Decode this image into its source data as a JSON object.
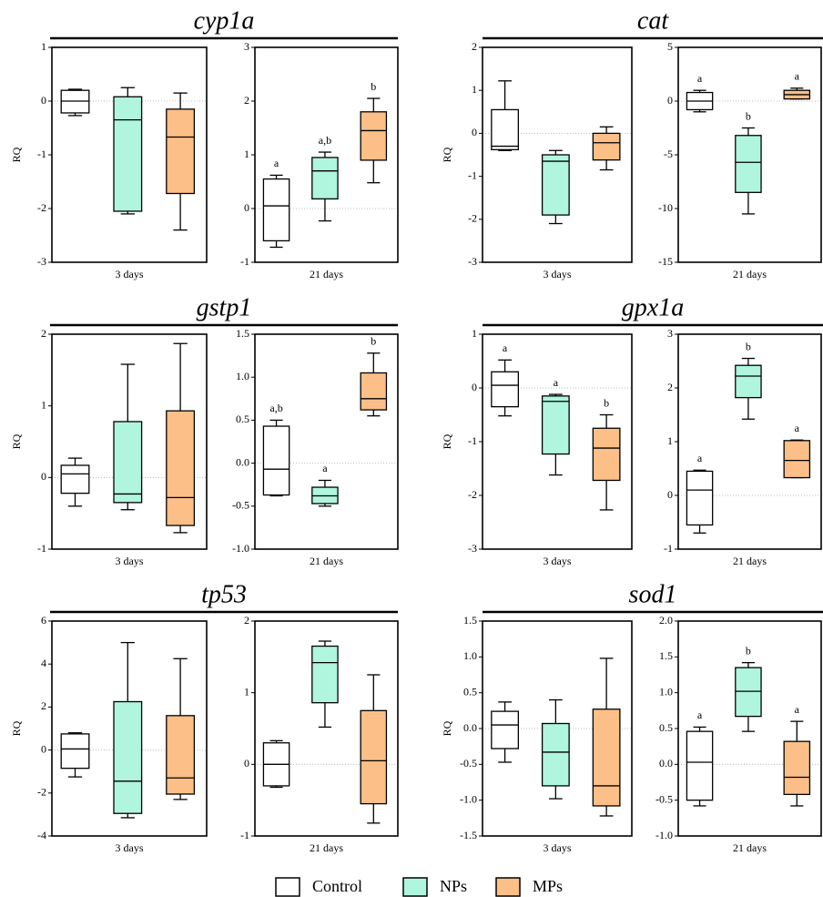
{
  "groups": [
    {
      "name": "Control",
      "color": "#ffffff"
    },
    {
      "name": "NPs",
      "color": "#b0f5dd"
    },
    {
      "name": "MPs",
      "color": "#fbbf87"
    }
  ],
  "chart_data": [
    {
      "type": "box",
      "title": "cyp1a",
      "ylabel": "RQ",
      "panels": [
        {
          "xlabel": "3 days",
          "ylim": [
            -3,
            1
          ],
          "yticks": [
            -3,
            -2,
            -1,
            0,
            1
          ],
          "boxes": [
            {
              "min": -0.27,
              "q1": -0.22,
              "median": 0.0,
              "q3": 0.2,
              "max": 0.22
            },
            {
              "min": -2.1,
              "q1": -2.05,
              "median": -0.35,
              "q3": 0.08,
              "max": 0.25
            },
            {
              "min": -2.4,
              "q1": -1.72,
              "median": -0.67,
              "q3": -0.15,
              "max": 0.15
            }
          ]
        },
        {
          "xlabel": "21 days",
          "ylim": [
            -1,
            3
          ],
          "yticks": [
            -1,
            0,
            1,
            2,
            3
          ],
          "letters": [
            "a",
            "a,b",
            "b"
          ],
          "boxes": [
            {
              "min": -0.72,
              "q1": -0.6,
              "median": 0.05,
              "q3": 0.55,
              "max": 0.62
            },
            {
              "min": -0.23,
              "q1": 0.18,
              "median": 0.7,
              "q3": 0.95,
              "max": 1.05
            },
            {
              "min": 0.48,
              "q1": 0.9,
              "median": 1.45,
              "q3": 1.8,
              "max": 2.05
            }
          ]
        }
      ]
    },
    {
      "type": "box",
      "title": "cat",
      "ylabel": "RQ",
      "panels": [
        {
          "xlabel": "3 days",
          "ylim": [
            -3,
            2
          ],
          "yticks": [
            -3,
            -2,
            -1,
            0,
            1,
            2
          ],
          "boxes": [
            {
              "min": -0.4,
              "q1": -0.38,
              "median": -0.3,
              "q3": 0.55,
              "max": 1.22
            },
            {
              "min": -2.1,
              "q1": -1.9,
              "median": -0.65,
              "q3": -0.5,
              "max": -0.4
            },
            {
              "min": -0.85,
              "q1": -0.62,
              "median": -0.22,
              "q3": 0.0,
              "max": 0.15
            }
          ]
        },
        {
          "xlabel": "21 days",
          "ylim": [
            -15,
            5
          ],
          "yticks": [
            -15,
            -10,
            -5,
            0,
            5
          ],
          "letters": [
            "a",
            "b",
            "a"
          ],
          "boxes": [
            {
              "min": -1,
              "q1": -0.8,
              "median": 0,
              "q3": 0.8,
              "max": 1
            },
            {
              "min": -10.5,
              "q1": -8.5,
              "median": -5.7,
              "q3": -3.2,
              "max": -2.5
            },
            {
              "min": 0.2,
              "q1": 0.2,
              "median": 0.6,
              "q3": 1.0,
              "max": 1.2
            }
          ]
        }
      ]
    },
    {
      "type": "box",
      "title": "gstp1",
      "ylabel": "RQ",
      "panels": [
        {
          "xlabel": "3 days",
          "ylim": [
            -1,
            2
          ],
          "yticks": [
            -1,
            0,
            1,
            2
          ],
          "boxes": [
            {
              "min": -0.4,
              "q1": -0.22,
              "median": 0.05,
              "q3": 0.17,
              "max": 0.27
            },
            {
              "min": -0.45,
              "q1": -0.35,
              "median": -0.23,
              "q3": 0.78,
              "max": 1.58
            },
            {
              "min": -0.77,
              "q1": -0.67,
              "median": -0.28,
              "q3": 0.93,
              "max": 1.87
            }
          ]
        },
        {
          "xlabel": "21 days",
          "ylim": [
            -1,
            1.5
          ],
          "yticks": [
            {
              "value": -1,
              "label": "-1.0"
            },
            -0.5,
            {
              "value": 0,
              "label": "0.0"
            },
            0.5,
            {
              "value": 1,
              "label": "1.0"
            },
            1.5
          ],
          "letters": [
            "a,b",
            "a",
            "b"
          ],
          "boxes": [
            {
              "min": -0.38,
              "q1": -0.37,
              "median": -0.07,
              "q3": 0.43,
              "max": 0.5
            },
            {
              "min": -0.5,
              "q1": -0.47,
              "median": -0.38,
              "q3": -0.28,
              "max": -0.2
            },
            {
              "min": 0.55,
              "q1": 0.62,
              "median": 0.75,
              "q3": 1.05,
              "max": 1.28
            }
          ]
        }
      ]
    },
    {
      "type": "box",
      "title": "gpx1a",
      "ylabel": "RQ",
      "panels": [
        {
          "xlabel": "3 days",
          "ylim": [
            -3,
            1
          ],
          "yticks": [
            -3,
            -2,
            -1,
            0,
            1
          ],
          "letters": [
            "a",
            "a",
            "b"
          ],
          "boxes": [
            {
              "min": -0.52,
              "q1": -0.35,
              "median": 0.05,
              "q3": 0.3,
              "max": 0.52
            },
            {
              "min": -1.62,
              "q1": -1.23,
              "median": -0.25,
              "q3": -0.15,
              "max": -0.12
            },
            {
              "min": -2.27,
              "q1": -1.72,
              "median": -1.12,
              "q3": -0.75,
              "max": -0.5
            }
          ]
        },
        {
          "xlabel": "21 days",
          "ylim": [
            -1,
            3
          ],
          "yticks": [
            -1,
            0,
            1,
            2,
            3
          ],
          "letters": [
            "a",
            "b",
            "a"
          ],
          "boxes": [
            {
              "min": -0.7,
              "q1": -0.55,
              "median": 0.1,
              "q3": 0.45,
              "max": 0.47
            },
            {
              "min": 1.42,
              "q1": 1.82,
              "median": 2.22,
              "q3": 2.42,
              "max": 2.55
            },
            {
              "min": 0.33,
              "q1": 0.33,
              "median": 0.65,
              "q3": 1.02,
              "max": 1.03
            }
          ]
        }
      ]
    },
    {
      "type": "box",
      "title": "tp53",
      "ylabel": "RQ",
      "panels": [
        {
          "xlabel": "3 days",
          "ylim": [
            -4,
            6
          ],
          "yticks": [
            -4,
            -2,
            0,
            2,
            4,
            6
          ],
          "boxes": [
            {
              "min": -1.25,
              "q1": -0.85,
              "median": 0.05,
              "q3": 0.75,
              "max": 0.8
            },
            {
              "min": -3.15,
              "q1": -2.95,
              "median": -1.45,
              "q3": 2.25,
              "max": 5
            },
            {
              "min": -2.3,
              "q1": -2.05,
              "median": -1.3,
              "q3": 1.6,
              "max": 4.25
            }
          ]
        },
        {
          "xlabel": "21 days",
          "ylim": [
            -1,
            2
          ],
          "yticks": [
            -1,
            0,
            1,
            2
          ],
          "boxes": [
            {
              "min": -0.32,
              "q1": -0.3,
              "median": 0,
              "q3": 0.3,
              "max": 0.33
            },
            {
              "min": 0.52,
              "q1": 0.86,
              "median": 1.42,
              "q3": 1.65,
              "max": 1.72
            },
            {
              "min": -0.82,
              "q1": -0.55,
              "median": 0.05,
              "q3": 0.75,
              "max": 1.25
            }
          ]
        }
      ]
    },
    {
      "type": "box",
      "title": "sod1",
      "ylabel": "RQ",
      "panels": [
        {
          "xlabel": "3 days",
          "ylim": [
            -1.5,
            1.5
          ],
          "yticks": [
            -1.5,
            {
              "value": -1,
              "label": "-1.0"
            },
            -0.5,
            {
              "value": 0,
              "label": "0.0"
            },
            0.5,
            {
              "value": 1,
              "label": "1.0"
            },
            1.5
          ],
          "boxes": [
            {
              "min": -0.47,
              "q1": -0.28,
              "median": 0.05,
              "q3": 0.24,
              "max": 0.37
            },
            {
              "min": -0.98,
              "q1": -0.8,
              "median": -0.33,
              "q3": 0.07,
              "max": 0.4
            },
            {
              "min": -1.22,
              "q1": -1.08,
              "median": -0.8,
              "q3": 0.27,
              "max": 0.98
            }
          ]
        },
        {
          "xlabel": "21 days",
          "ylim": [
            -1,
            2
          ],
          "yticks": [
            {
              "value": -1,
              "label": "-1.0"
            },
            -0.5,
            {
              "value": 0,
              "label": "0.0"
            },
            0.5,
            {
              "value": 1,
              "label": "1.0"
            },
            1.5,
            {
              "value": 2,
              "label": "2.0"
            }
          ],
          "letters": [
            "a",
            "b",
            "a"
          ],
          "boxes": [
            {
              "min": -0.58,
              "q1": -0.5,
              "median": 0.03,
              "q3": 0.46,
              "max": 0.52
            },
            {
              "min": 0.46,
              "q1": 0.67,
              "median": 1.02,
              "q3": 1.35,
              "max": 1.42
            },
            {
              "min": -0.58,
              "q1": -0.42,
              "median": -0.18,
              "q3": 0.32,
              "max": 0.6
            }
          ]
        }
      ]
    }
  ]
}
